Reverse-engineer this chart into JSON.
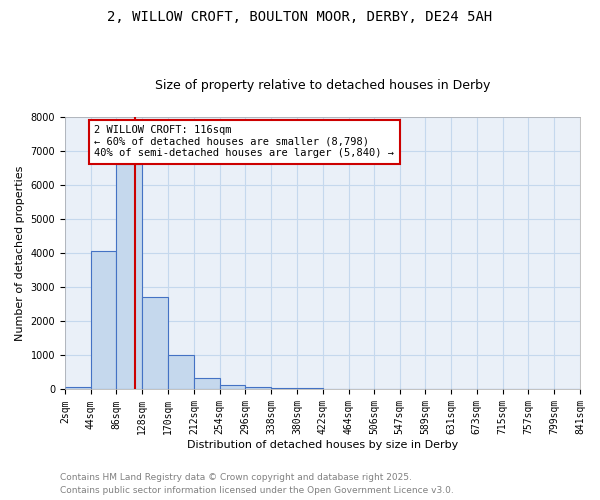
{
  "title_line1": "2, WILLOW CROFT, BOULTON MOOR, DERBY, DE24 5AH",
  "title_line2": "Size of property relative to detached houses in Derby",
  "xlabel": "Distribution of detached houses by size in Derby",
  "ylabel": "Number of detached properties",
  "bin_edges": [
    2,
    44,
    86,
    128,
    170,
    212,
    254,
    296,
    338,
    380,
    422,
    464,
    506,
    547,
    589,
    631,
    673,
    715,
    757,
    799,
    841
  ],
  "bar_heights": [
    80,
    4050,
    6600,
    2700,
    1000,
    350,
    140,
    80,
    50,
    50,
    0,
    0,
    0,
    0,
    0,
    0,
    0,
    0,
    0,
    0
  ],
  "bar_color": "#c5d8ed",
  "bar_edge_color": "#4472c4",
  "grid_color": "#c5d8ed",
  "bg_color": "#eaf0f8",
  "property_line_x": 116,
  "property_line_color": "#cc0000",
  "annotation_text": "2 WILLOW CROFT: 116sqm\n← 60% of detached houses are smaller (8,798)\n40% of semi-detached houses are larger (5,840) →",
  "annotation_box_color": "#cc0000",
  "ylim": [
    0,
    8000
  ],
  "yticks": [
    0,
    1000,
    2000,
    3000,
    4000,
    5000,
    6000,
    7000,
    8000
  ],
  "xtick_labels": [
    "2sqm",
    "44sqm",
    "86sqm",
    "128sqm",
    "170sqm",
    "212sqm",
    "254sqm",
    "296sqm",
    "338sqm",
    "380sqm",
    "422sqm",
    "464sqm",
    "506sqm",
    "547sqm",
    "589sqm",
    "631sqm",
    "673sqm",
    "715sqm",
    "757sqm",
    "799sqm",
    "841sqm"
  ],
  "footnote_line1": "Contains HM Land Registry data © Crown copyright and database right 2025.",
  "footnote_line2": "Contains public sector information licensed under the Open Government Licence v3.0.",
  "title1_fontsize": 10,
  "title2_fontsize": 9,
  "axis_label_fontsize": 8,
  "tick_fontsize": 7,
  "annotation_fontsize": 7.5,
  "footnote_fontsize": 6.5
}
